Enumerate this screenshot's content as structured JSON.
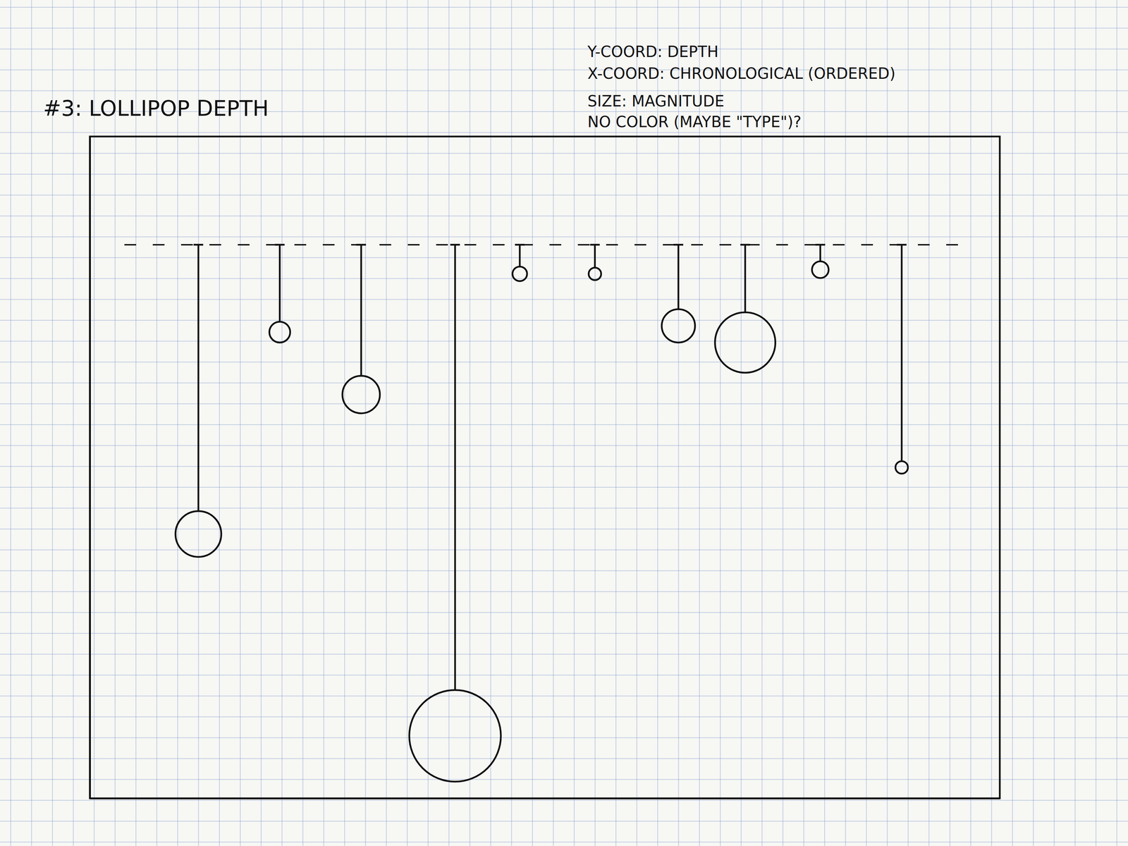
{
  "chart_data": {
    "type": "lollipop",
    "title": "#3: LOLLIPOP DEPTH",
    "notes": [
      "Y-COORD: DEPTH",
      "X-COORD: CHRONOLOGICAL (ORDERED)",
      "SIZE: MAGNITUDE",
      "NO COLOR (MAYBE \"TYPE\")?"
    ],
    "x": [
      5.2,
      9.1,
      13.0,
      17.5,
      20.6,
      24.2,
      28.2,
      31.4,
      35.0,
      38.9
    ],
    "values": [
      13.9,
      4.2,
      7.2,
      23.6,
      1.4,
      1.4,
      3.9,
      4.7,
      1.2,
      10.7
    ],
    "sizes": [
      1.1,
      0.5,
      0.9,
      2.2,
      0.35,
      0.3,
      0.8,
      1.45,
      0.4,
      0.3
    ],
    "xlim": [
      0,
      43.6
    ],
    "ylim": [
      -5.2,
      26.6
    ],
    "tick_labels": false,
    "marker": "circle",
    "color": "#111111"
  }
}
